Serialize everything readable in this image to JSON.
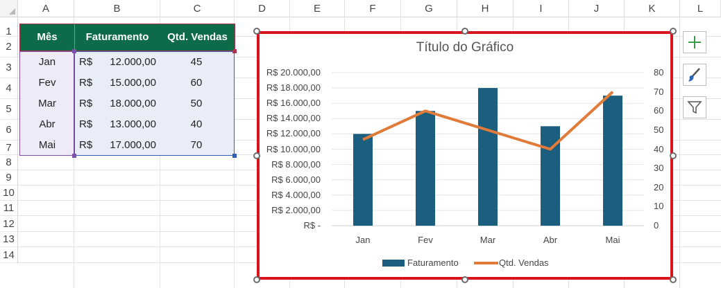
{
  "columns": [
    "A",
    "B",
    "C",
    "D",
    "E",
    "F",
    "G",
    "H",
    "I",
    "J",
    "K",
    "L"
  ],
  "rows": [
    "1",
    "2",
    "3",
    "4",
    "5",
    "6",
    "7",
    "8",
    "9",
    "10",
    "11",
    "12",
    "13",
    "14"
  ],
  "table": {
    "headers": [
      "Mês",
      "Faturamento",
      "Qtd. Vendas"
    ],
    "rows": [
      {
        "month": "Jan",
        "currency": "R$",
        "value": "12.000,00",
        "qty": "45"
      },
      {
        "month": "Fev",
        "currency": "R$",
        "value": "15.000,00",
        "qty": "60"
      },
      {
        "month": "Mar",
        "currency": "R$",
        "value": "18.000,00",
        "qty": "50"
      },
      {
        "month": "Abr",
        "currency": "R$",
        "value": "13.000,00",
        "qty": "40"
      },
      {
        "month": "Mai",
        "currency": "R$",
        "value": "17.000,00",
        "qty": "70"
      }
    ]
  },
  "chart_data": {
    "type": "bar",
    "title": "Título do Gráfico",
    "categories": [
      "Jan",
      "Fev",
      "Mar",
      "Abr",
      "Mai"
    ],
    "series": [
      {
        "name": "Faturamento",
        "type": "bar",
        "values": [
          12000,
          15000,
          18000,
          13000,
          17000
        ],
        "color": "#1b5e7e",
        "axis": "left"
      },
      {
        "name": "Qtd. Vendas",
        "type": "line",
        "values": [
          45,
          60,
          50,
          40,
          70
        ],
        "color": "#e07b39",
        "axis": "right"
      }
    ],
    "y_left": {
      "min": 0,
      "max": 20000,
      "ticks": [
        "R$ -",
        "R$ 2.000,00",
        "R$ 4.000,00",
        "R$ 6.000,00",
        "R$ 8.000,00",
        "R$ 10.000,00",
        "R$ 12.000,00",
        "R$ 14.000,00",
        "R$ 16.000,00",
        "R$ 18.000,00",
        "R$ 20.000,00"
      ]
    },
    "y_right": {
      "min": 0,
      "max": 80,
      "ticks": [
        "0",
        "10",
        "20",
        "30",
        "40",
        "50",
        "60",
        "70",
        "80"
      ]
    },
    "legend": "bottom",
    "grid": true
  },
  "tools": [
    "plus-icon",
    "brush-icon",
    "filter-icon"
  ],
  "colors": {
    "header_green": "#0e6b4a",
    "selection_red": "#d9141c",
    "bar": "#1b5e7e",
    "line": "#e07b39"
  }
}
